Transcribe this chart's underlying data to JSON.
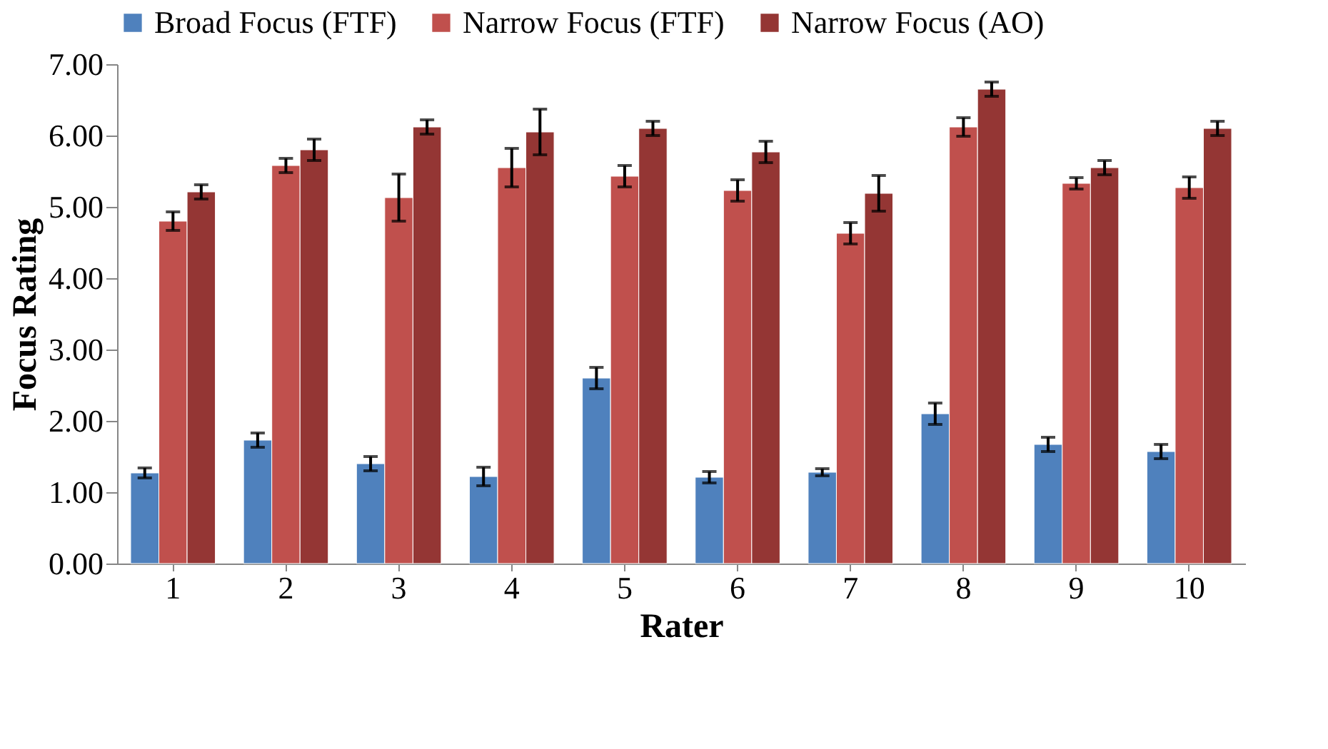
{
  "chart_data": {
    "type": "bar",
    "xlabel": "Rater",
    "ylabel": "Focus Rating",
    "categories": [
      "1",
      "2",
      "3",
      "4",
      "5",
      "6",
      "7",
      "8",
      "9",
      "10"
    ],
    "series": [
      {
        "name": "Broad Focus (FTF)",
        "color": "#4f81bd",
        "values": [
          1.27,
          1.73,
          1.4,
          1.22,
          2.6,
          1.21,
          1.28,
          2.1,
          1.67,
          1.57
        ],
        "errors": [
          0.07,
          0.1,
          0.1,
          0.13,
          0.15,
          0.08,
          0.05,
          0.15,
          0.1,
          0.1
        ]
      },
      {
        "name": "Narrow Focus (FTF)",
        "color": "#c0504d",
        "values": [
          4.8,
          5.58,
          5.13,
          5.55,
          5.43,
          5.23,
          4.63,
          6.12,
          5.33,
          5.27
        ],
        "errors": [
          0.13,
          0.1,
          0.33,
          0.27,
          0.15,
          0.15,
          0.15,
          0.13,
          0.08,
          0.15
        ]
      },
      {
        "name": "Narrow Focus (AO)",
        "color": "#943634",
        "values": [
          5.21,
          5.8,
          6.12,
          6.05,
          6.1,
          5.77,
          5.19,
          6.65,
          5.55,
          6.1
        ],
        "errors": [
          0.1,
          0.15,
          0.1,
          0.32,
          0.1,
          0.15,
          0.25,
          0.1,
          0.1,
          0.1
        ]
      }
    ],
    "ylim": [
      0,
      7
    ],
    "yticks": [
      {
        "value": 0,
        "label": "0.00"
      },
      {
        "value": 1,
        "label": "1.00"
      },
      {
        "value": 2,
        "label": "2.00"
      },
      {
        "value": 3,
        "label": "3.00"
      },
      {
        "value": 4,
        "label": "4.00"
      },
      {
        "value": 5,
        "label": "5.00"
      },
      {
        "value": 6,
        "label": "6.00"
      },
      {
        "value": 7,
        "label": "7.00"
      }
    ],
    "grid": false,
    "legend": "top"
  }
}
